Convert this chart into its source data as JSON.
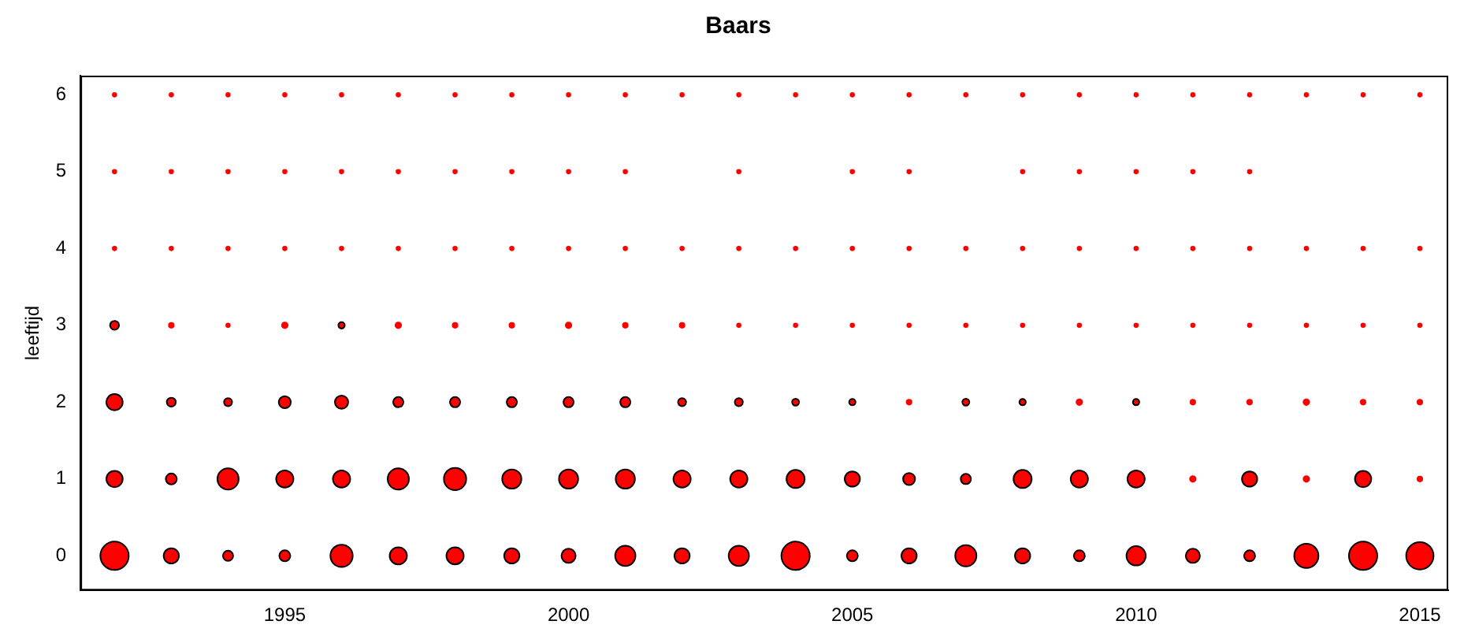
{
  "chart_data": {
    "type": "bubble",
    "title": "Baars",
    "ylabel": "leeftijd",
    "xlim": [
      1991.4,
      2015.5
    ],
    "xticks": [
      1995,
      2000,
      2005,
      2010,
      2015
    ],
    "ylim": [
      -0.45,
      6.25
    ],
    "yticks": [
      0,
      1,
      2,
      3,
      4,
      5,
      6
    ],
    "grid": false,
    "legend": false,
    "marker": "circle",
    "series": [
      {
        "color": "#ff0000",
        "x": [
          1992,
          1993,
          1994,
          1995,
          1996,
          1997,
          1998,
          1999,
          2000,
          2001,
          2002,
          2003,
          2004,
          2005,
          2006,
          2007,
          2008,
          2009,
          2010,
          2011,
          2012,
          2013,
          2014,
          2015,
          1992,
          1993,
          1994,
          1995,
          1996,
          1997,
          1998,
          1999,
          2000,
          2001,
          2002,
          2003,
          2004,
          2005,
          2006,
          2007,
          2008,
          2009,
          2010,
          2011,
          2012,
          2013,
          2014,
          2015,
          1992,
          1993,
          1994,
          1995,
          1996,
          1997,
          1998,
          1999,
          2000,
          2001,
          2002,
          2003,
          2004,
          2005,
          2006,
          2007,
          2008,
          2009,
          2010,
          2011,
          2012,
          2013,
          2014,
          2015,
          1992,
          1993,
          1994,
          1995,
          1996,
          1997,
          1998,
          1999,
          2000,
          2001,
          2002,
          2003,
          2004,
          2005,
          2006,
          2007,
          2008,
          2009,
          2010,
          2011,
          2012,
          2013,
          2014,
          2015,
          1992,
          1993,
          1994,
          1995,
          1996,
          1997,
          1998,
          1999,
          2000,
          2001,
          2002,
          2003,
          2004,
          2005,
          2006,
          2007,
          2008,
          2009,
          2010,
          2011,
          2012,
          2013,
          2014,
          2015,
          1992,
          1993,
          1994,
          1995,
          1996,
          1997,
          1998,
          1999,
          2000,
          2001,
          2003,
          2005,
          2006,
          2008,
          2009,
          2010,
          2011,
          2012,
          1992,
          1993,
          1994,
          1995,
          1996,
          1997,
          1998,
          1999,
          2000,
          2001,
          2002,
          2003,
          2004,
          2005,
          2006,
          2007,
          2008,
          2009,
          2010,
          2011,
          2012,
          2013,
          2014,
          2015
        ],
        "values": [
          0,
          0,
          0,
          0,
          0,
          0,
          0,
          0,
          0,
          0,
          0,
          0,
          0,
          0,
          0,
          0,
          0,
          0,
          0,
          0,
          0,
          0,
          0,
          0,
          1,
          1,
          1,
          1,
          1,
          1,
          1,
          1,
          1,
          1,
          1,
          1,
          1,
          1,
          1,
          1,
          1,
          1,
          1,
          1,
          1,
          1,
          1,
          1,
          2,
          2,
          2,
          2,
          2,
          2,
          2,
          2,
          2,
          2,
          2,
          2,
          2,
          2,
          2,
          2,
          2,
          2,
          2,
          2,
          2,
          2,
          2,
          2,
          3,
          3,
          3,
          3,
          3,
          3,
          3,
          3,
          3,
          3,
          3,
          3,
          3,
          3,
          3,
          3,
          3,
          3,
          3,
          3,
          3,
          3,
          3,
          3,
          4,
          4,
          4,
          4,
          4,
          4,
          4,
          4,
          4,
          4,
          4,
          4,
          4,
          4,
          4,
          4,
          4,
          4,
          4,
          4,
          4,
          4,
          4,
          4,
          5,
          5,
          5,
          5,
          5,
          5,
          5,
          5,
          5,
          5,
          5,
          5,
          5,
          5,
          5,
          5,
          5,
          5,
          6,
          6,
          6,
          6,
          6,
          6,
          6,
          6,
          6,
          6,
          6,
          6,
          6,
          6,
          6,
          6,
          6,
          6,
          6,
          6,
          6,
          6,
          6,
          6
        ],
        "sizes": [
          1,
          0.29,
          0.13,
          0.15,
          0.62,
          0.37,
          0.37,
          0.29,
          0.25,
          0.51,
          0.29,
          0.51,
          1,
          0.15,
          0.29,
          0.56,
          0.29,
          0.15,
          0.46,
          0.25,
          0.15,
          0.73,
          1,
          0.93,
          0.33,
          0.15,
          0.56,
          0.37,
          0.37,
          0.56,
          0.62,
          0.46,
          0.46,
          0.46,
          0.37,
          0.37,
          0.41,
          0.29,
          0.18,
          0.13,
          0.41,
          0.37,
          0.37,
          0.03,
          0.29,
          0.03,
          0.33,
          0.02,
          0.33,
          0.1,
          0.08,
          0.18,
          0.22,
          0.13,
          0.13,
          0.13,
          0.13,
          0.13,
          0.08,
          0.08,
          0.06,
          0.05,
          0.02,
          0.06,
          0.05,
          0.03,
          0.05,
          0.02,
          0.02,
          0.03,
          0.02,
          0.02,
          0.1,
          0.02,
          0.01,
          0.03,
          0.05,
          0.03,
          0.02,
          0.02,
          0.03,
          0.02,
          0.02,
          0.01,
          0.01,
          0.01,
          0.01,
          0.01,
          0.01,
          0.01,
          0.01,
          0.01,
          0.01,
          0.01,
          0.01,
          0.01,
          0.01,
          0.01,
          0.01,
          0.01,
          0.01,
          0.01,
          0.01,
          0.01,
          0.01,
          0.01,
          0.01,
          0.01,
          0.01,
          0.01,
          0.01,
          0.01,
          0.01,
          0.01,
          0.01,
          0.01,
          0.01,
          0.01,
          0.01,
          0.01,
          0.01,
          0.01,
          0.01,
          0.01,
          0.01,
          0.01,
          0.01,
          0.01,
          0.01,
          0.01,
          0.01,
          0.01,
          0.01,
          0.01,
          0.01,
          0.01,
          0.01,
          0.01,
          0.01,
          0.01,
          0.01,
          0.01,
          0.01,
          0.01,
          0.01,
          0.01,
          0.01,
          0.01,
          0.01,
          0.01,
          0.01,
          0.01,
          0.01,
          0.01,
          0.01,
          0.01,
          0.01,
          0.01,
          0.01,
          0.01,
          0.01,
          0.01
        ]
      }
    ]
  }
}
